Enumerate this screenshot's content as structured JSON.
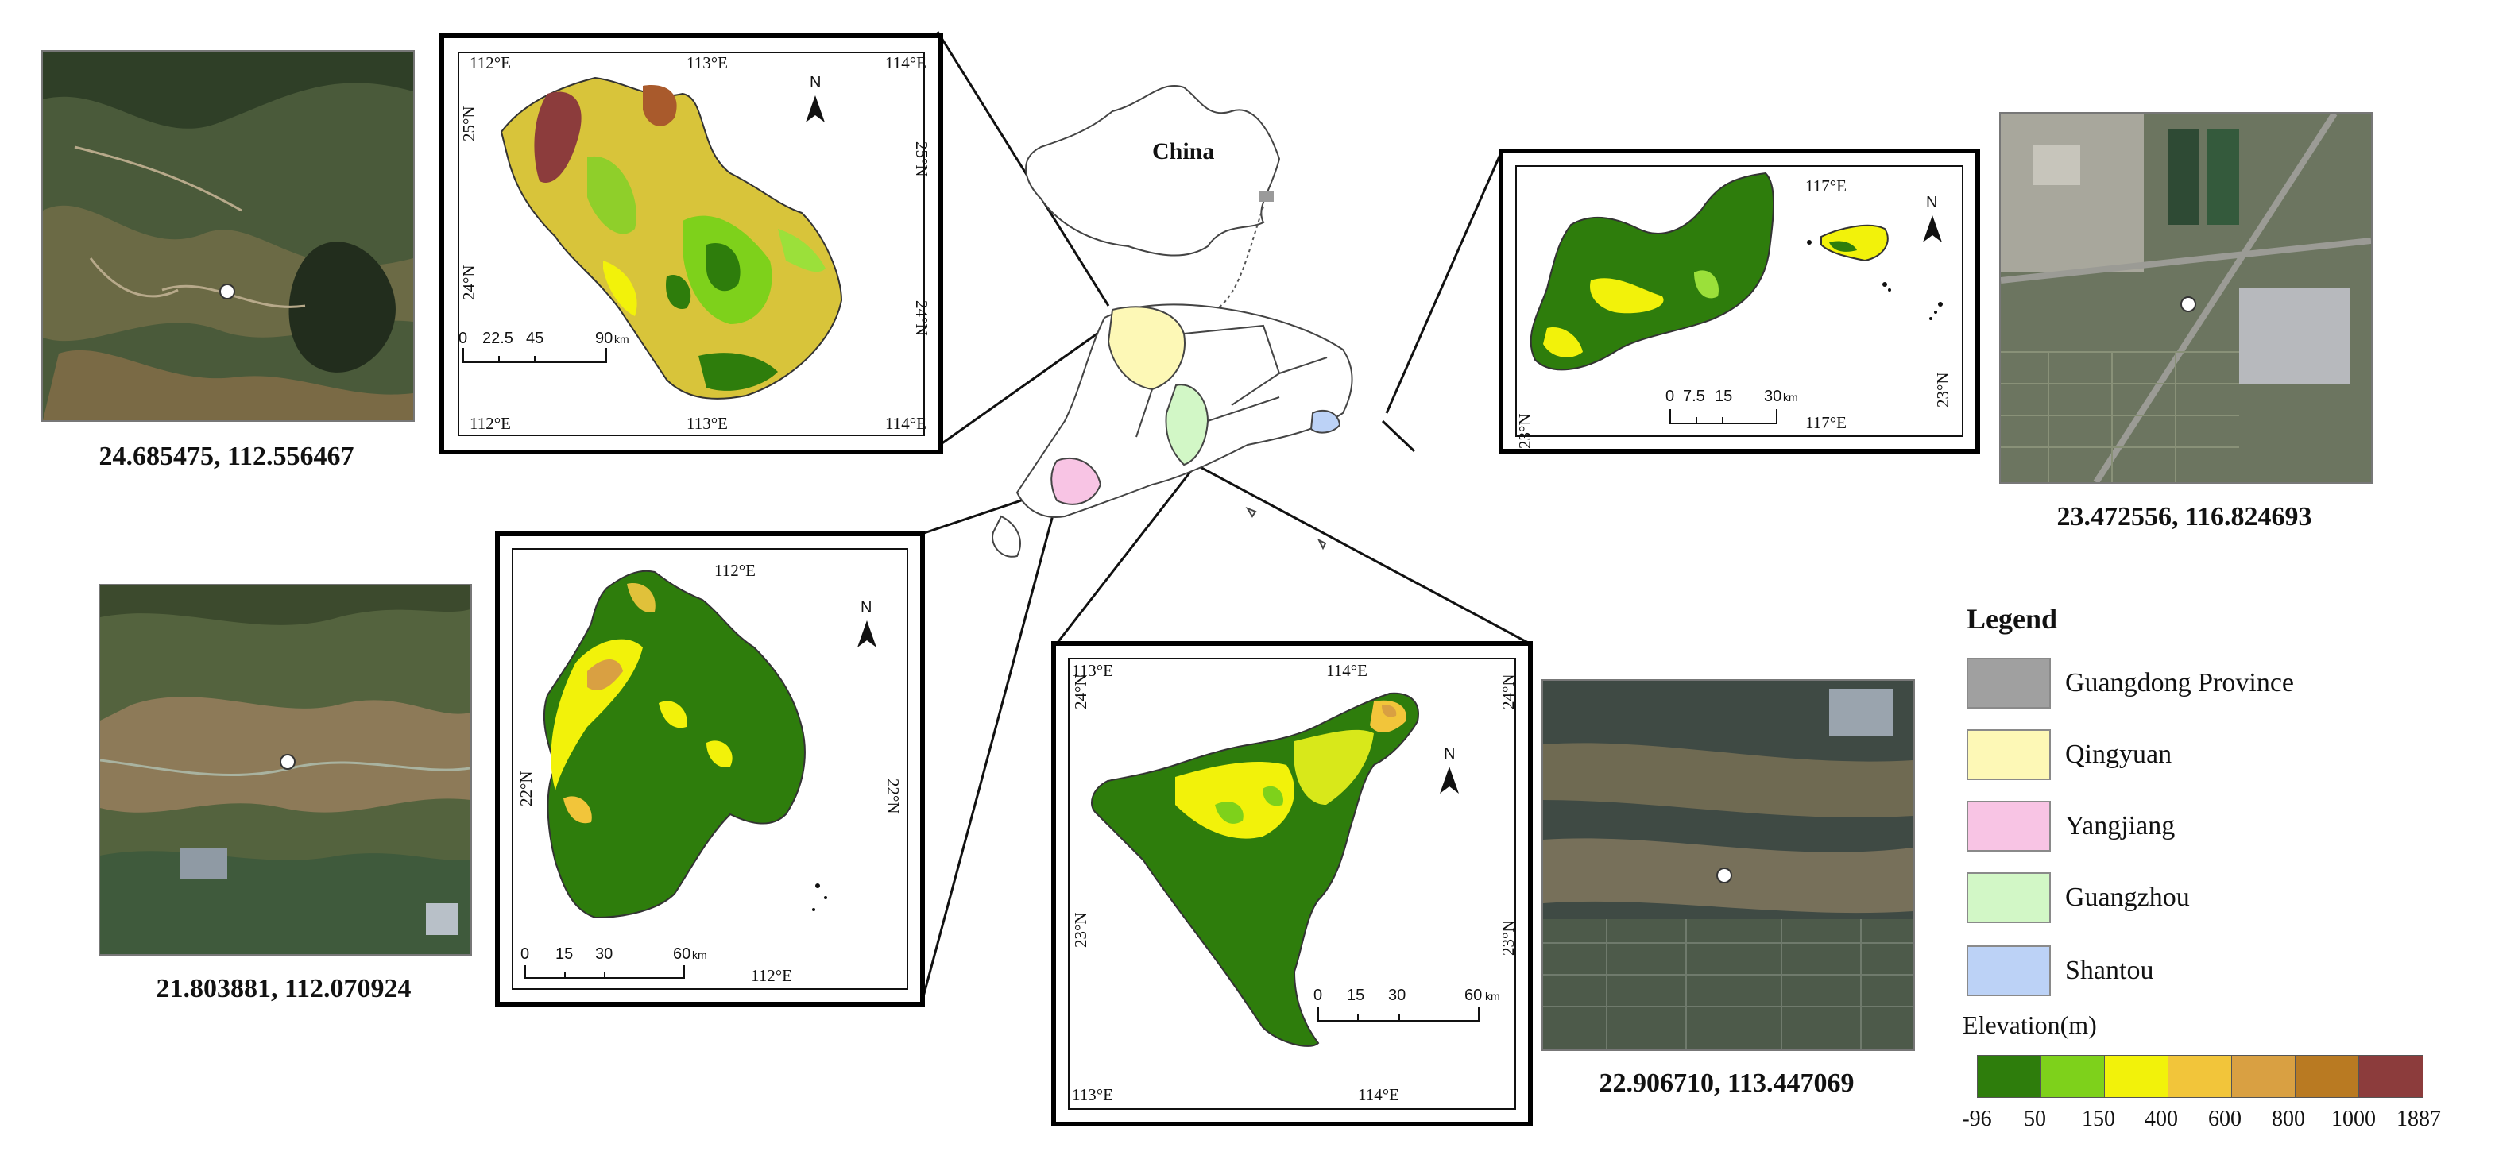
{
  "satellites": [
    {
      "id": "sat-qingyuan",
      "coord": "24.685475, 112.556467"
    },
    {
      "id": "sat-yangjiang",
      "coord": "21.803881, 112.070924"
    },
    {
      "id": "sat-guangzhou",
      "coord": "22.906710, 113.447069"
    },
    {
      "id": "sat-shantou",
      "coord": "23.472556, 116.824693"
    }
  ],
  "overview": {
    "china_label": "China"
  },
  "maps": {
    "qingyuan": {
      "lon_ticks": [
        "112°E",
        "113°E",
        "114°E"
      ],
      "lat_ticks": [
        "25°N",
        "24°N"
      ],
      "scale": [
        "0",
        "22.5",
        "45",
        "90"
      ],
      "scale_unit": "km",
      "north": "N"
    },
    "shantou": {
      "lon_ticks": [
        "117°E"
      ],
      "lat_ticks": [
        "23°N"
      ],
      "scale": [
        "0",
        "7.5",
        "15",
        "30"
      ],
      "scale_unit": "km",
      "north": "N"
    },
    "yangjiang": {
      "lon_ticks": [
        "112°E"
      ],
      "lat_ticks": [
        "22°N"
      ],
      "scale": [
        "0",
        "15",
        "30",
        "60"
      ],
      "scale_unit": "km",
      "north": "N"
    },
    "guangzhou": {
      "lon_ticks": [
        "113°E",
        "114°E"
      ],
      "lat_ticks": [
        "24°N",
        "23°N"
      ],
      "scale": [
        "0",
        "15",
        "30",
        "60"
      ],
      "scale_unit": "km",
      "north": "N"
    }
  },
  "legend": {
    "title": "Legend",
    "items": [
      {
        "label": "Guangdong Province",
        "color": "#a0a0a0"
      },
      {
        "label": "Qingyuan",
        "color": "#fdf8b6"
      },
      {
        "label": "Yangjiang",
        "color": "#f8c4e4"
      },
      {
        "label": "Guangzhou",
        "color": "#d2f7c6"
      },
      {
        "label": "Shantou",
        "color": "#bcd2f6"
      }
    ]
  },
  "elevation": {
    "title": "Elevation(m)",
    "colors": [
      "#2e7d0c",
      "#7ed11b",
      "#f2f20a",
      "#f2c53a",
      "#d9a042",
      "#b97a22",
      "#8c3c3c"
    ],
    "ticks": [
      "-96",
      "50",
      "150",
      "400",
      "600",
      "800",
      "1000",
      "1887"
    ]
  }
}
